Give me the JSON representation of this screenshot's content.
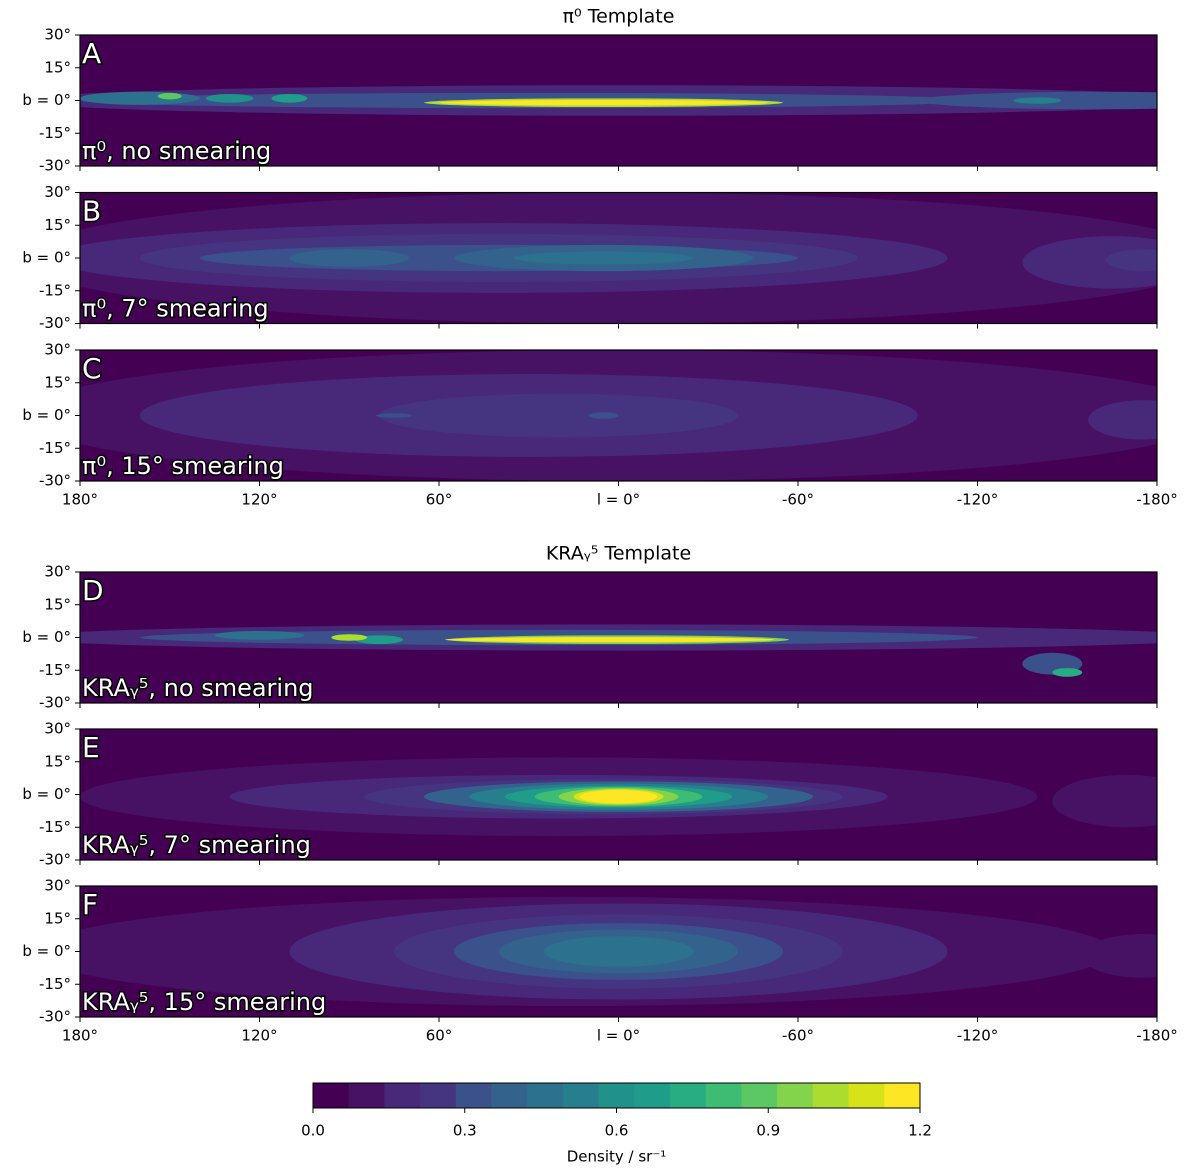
{
  "chart_data": [
    {
      "type": "contour",
      "title": "π⁰ Template",
      "panels": [
        {
          "letter": "A",
          "label": "π⁰, no smearing"
        },
        {
          "letter": "B",
          "label": "π⁰, 7° smearing"
        },
        {
          "letter": "C",
          "label": "π⁰, 15° smearing"
        }
      ],
      "xlim": [
        180,
        -180
      ],
      "xticks": [
        {
          "value": 180,
          "label": "180°"
        },
        {
          "value": 120,
          "label": "120°"
        },
        {
          "value": 60,
          "label": "60°"
        },
        {
          "value": 0,
          "label": "l = 0°"
        },
        {
          "value": -60,
          "label": "-60°"
        },
        {
          "value": -120,
          "label": "-120°"
        },
        {
          "value": -180,
          "label": "-180°"
        }
      ],
      "ylim": [
        -30,
        30
      ],
      "yticks": [
        {
          "value": 30,
          "label": "30°"
        },
        {
          "value": 15,
          "label": "15°"
        },
        {
          "value": 0,
          "label": "b = 0°"
        },
        {
          "value": -15,
          "label": "-15°"
        },
        {
          "value": -30,
          "label": "-30°"
        }
      ]
    },
    {
      "type": "contour",
      "title": "KRAᵧ⁵ Template",
      "panels": [
        {
          "letter": "D",
          "label": "KRAᵧ⁵, no smearing"
        },
        {
          "letter": "E",
          "label": "KRAᵧ⁵, 7° smearing"
        },
        {
          "letter": "F",
          "label": "KRAᵧ⁵, 15° smearing"
        }
      ],
      "xlim": [
        180,
        -180
      ],
      "xticks": [
        {
          "value": 180,
          "label": "180°"
        },
        {
          "value": 120,
          "label": "120°"
        },
        {
          "value": 60,
          "label": "60°"
        },
        {
          "value": 0,
          "label": "l = 0°"
        },
        {
          "value": -60,
          "label": "-60°"
        },
        {
          "value": -120,
          "label": "-120°"
        },
        {
          "value": -180,
          "label": "-180°"
        }
      ],
      "ylim": [
        -30,
        30
      ],
      "yticks": [
        {
          "value": 30,
          "label": "30°"
        },
        {
          "value": 15,
          "label": "15°"
        },
        {
          "value": 0,
          "label": "b = 0°"
        },
        {
          "value": -15,
          "label": "-15°"
        },
        {
          "value": -30,
          "label": "-30°"
        }
      ]
    }
  ],
  "colorbar": {
    "lim": [
      0,
      1.2
    ],
    "ticks": [
      {
        "value": 0,
        "label": "0.0"
      },
      0.3,
      0.6,
      0.9,
      1.2
    ],
    "label": "Density / sr⁻¹",
    "colors": [
      "#440154",
      "#471164",
      "#482878",
      "#453581",
      "#3b518b",
      "#33638d",
      "#2c718e",
      "#277f8e",
      "#21918c",
      "#1f9d8a",
      "#27ad81",
      "#3fbc73",
      "#5cc863",
      "#84d44b",
      "#addc30",
      "#d8e219",
      "#fde725"
    ]
  }
}
